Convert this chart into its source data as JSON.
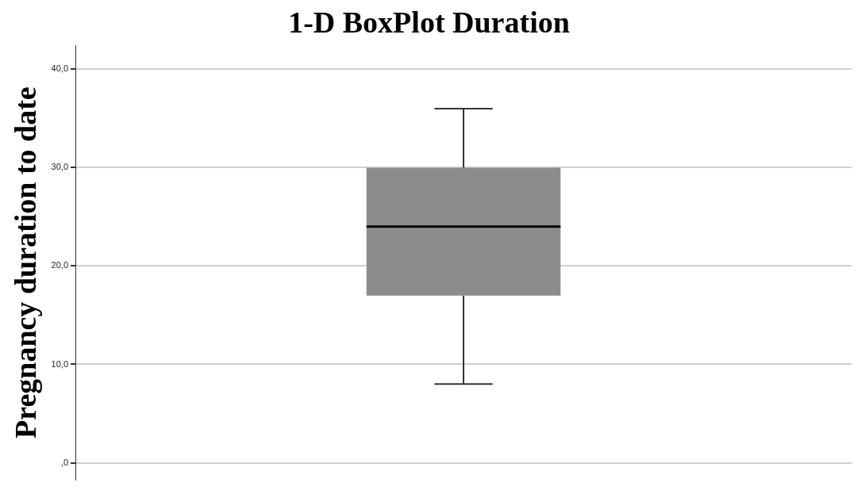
{
  "chart_data": {
    "type": "box",
    "title": "1-D BoxPlot Duration",
    "ylabel": "Pregnancy duration to date",
    "categories": [
      null
    ],
    "color": "#8c8c8c",
    "boxes": [
      {
        "low": 8,
        "q1": 17,
        "median": 24,
        "q3": 30,
        "high": 36
      }
    ],
    "ylim": [
      -1.7,
      42.4
    ],
    "yticks": [
      {
        "value": 0,
        "label": ",0"
      },
      {
        "value": 10,
        "label": "10,0"
      },
      {
        "value": 20,
        "label": "20,0"
      },
      {
        "value": 30,
        "label": "30,0"
      },
      {
        "value": 40,
        "label": "40,0"
      }
    ],
    "grid": "y",
    "legend": false
  }
}
